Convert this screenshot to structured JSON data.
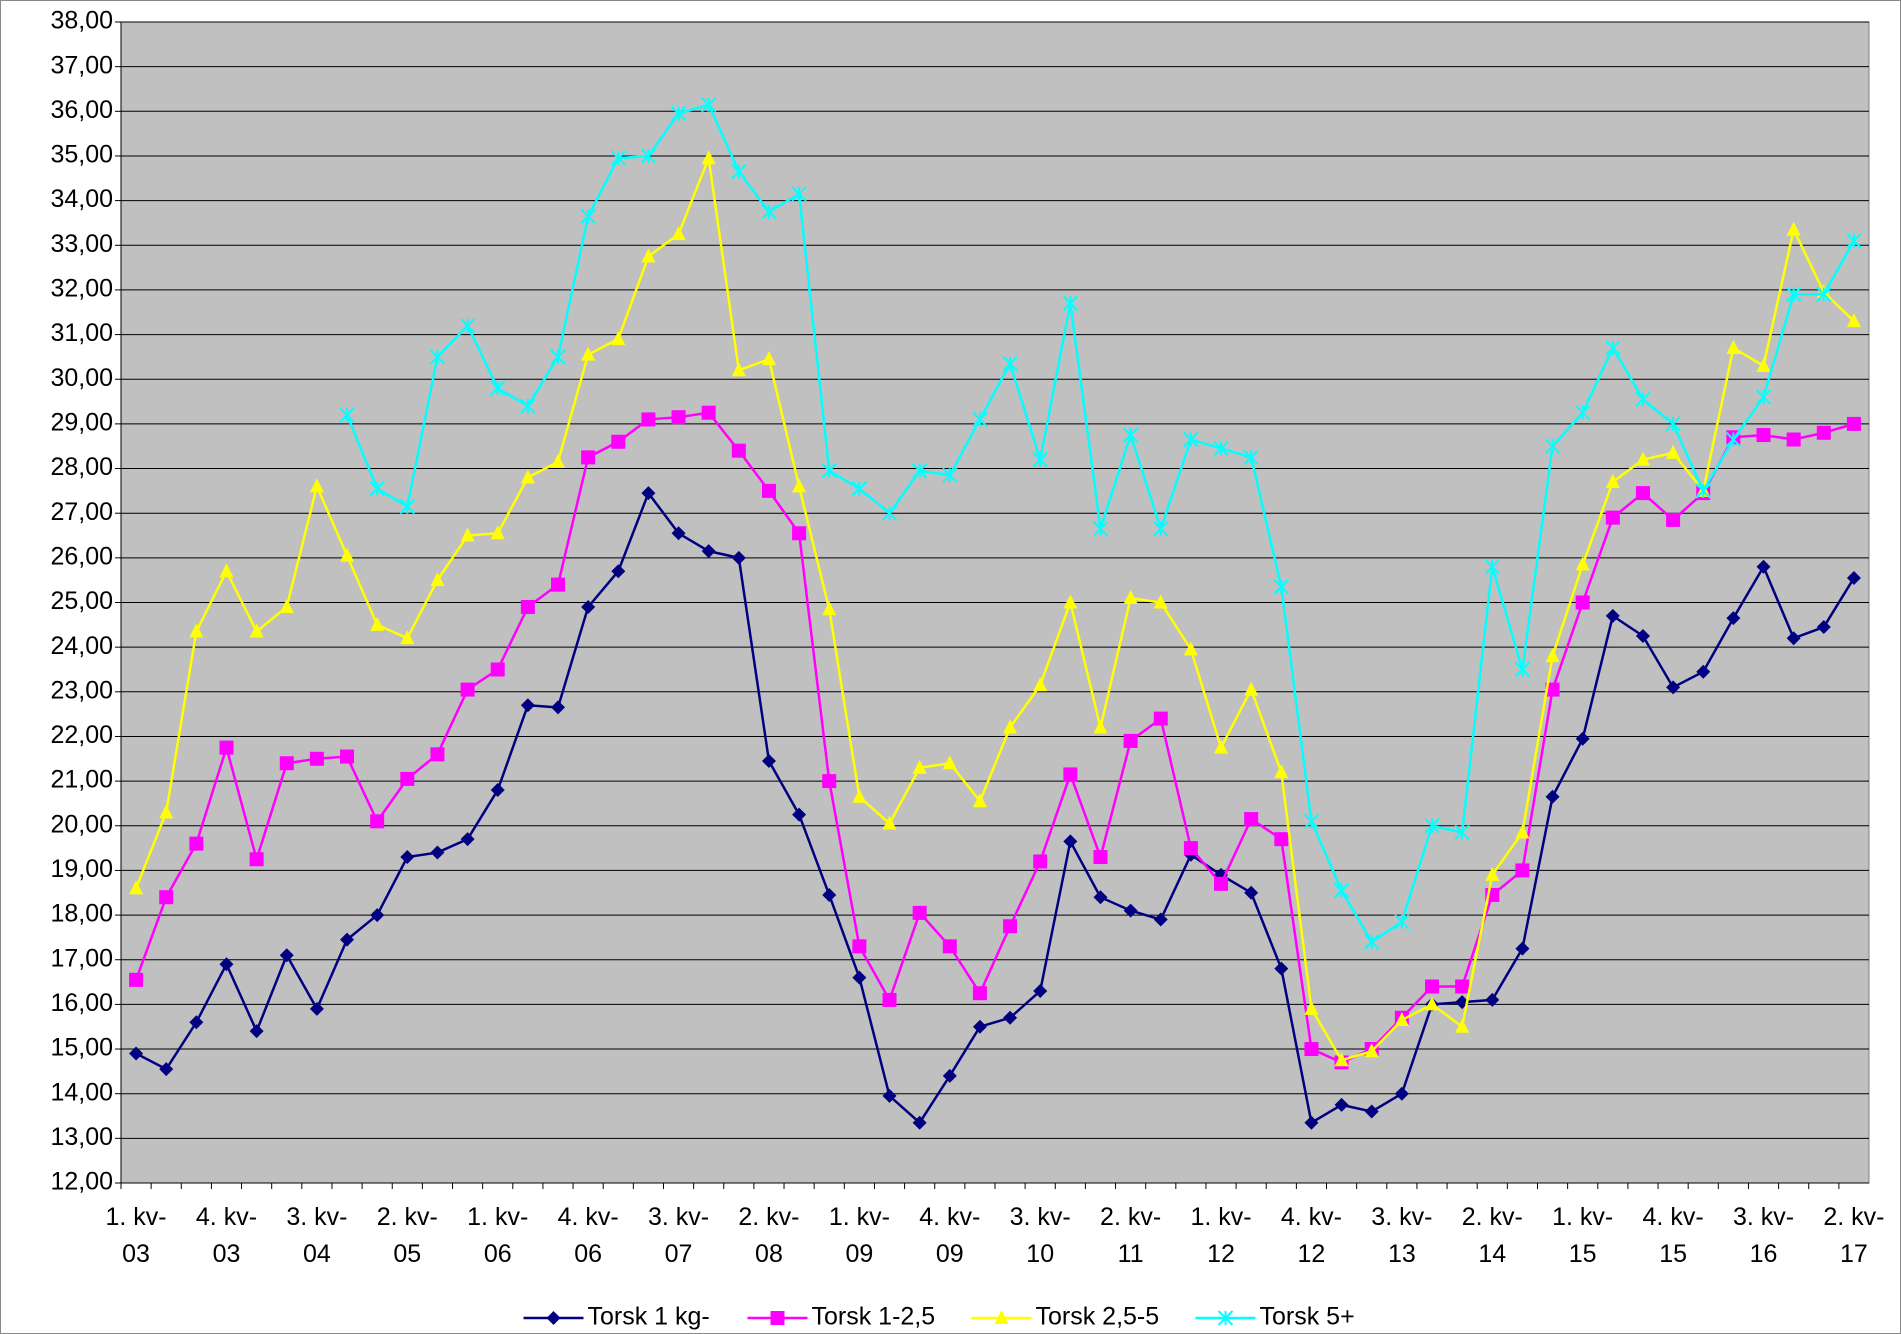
{
  "chart_data": {
    "type": "line",
    "categories": [
      "1. kv-03",
      null,
      null,
      "4. kv-03",
      null,
      null,
      "3. kv-04",
      null,
      null,
      "2. kv-05",
      null,
      null,
      "1. kv-06",
      null,
      null,
      "4. kv-06",
      null,
      null,
      "3. kv-07",
      null,
      null,
      "2. kv-08",
      null,
      null,
      "1. kv-09",
      null,
      null,
      "4. kv-09",
      null,
      null,
      "3. kv-10",
      null,
      null,
      "2. kv-11",
      null,
      null,
      "1. kv-12",
      null,
      null,
      "4. kv-12",
      null,
      null,
      "3. kv-13",
      null,
      null,
      "2. kv-14",
      null,
      null,
      "1. kv-15",
      null,
      null,
      "4. kv-15",
      null,
      null,
      "3. kv-16",
      null,
      null,
      "2. kv-17"
    ],
    "series": [
      {
        "name": "Torsk 1 kg-",
        "color": "#000080",
        "marker": "diamond",
        "values": [
          14.9,
          14.55,
          15.6,
          16.9,
          15.4,
          17.1,
          15.9,
          17.45,
          18.0,
          19.3,
          19.4,
          19.7,
          20.8,
          22.7,
          22.65,
          24.9,
          25.7,
          27.45,
          26.55,
          26.15,
          26.0,
          21.45,
          20.25,
          18.45,
          16.6,
          13.95,
          13.35,
          14.4,
          15.5,
          15.7,
          16.3,
          19.65,
          18.4,
          18.1,
          17.9,
          19.35,
          18.9,
          18.5,
          16.8,
          13.35,
          13.75,
          13.6,
          14.0,
          16.0,
          16.05,
          16.1,
          17.25,
          20.65,
          21.95,
          24.7,
          24.25,
          23.1,
          23.45,
          24.65,
          25.8,
          24.2,
          24.45,
          25.55
        ]
      },
      {
        "name": "Torsk 1-2,5",
        "color": "#ff00ff",
        "marker": "square",
        "values": [
          16.55,
          18.4,
          19.6,
          21.75,
          19.25,
          21.4,
          21.5,
          21.55,
          20.1,
          21.05,
          21.6,
          23.05,
          23.5,
          24.9,
          25.4,
          28.25,
          28.6,
          29.1,
          29.15,
          29.25,
          28.4,
          27.5,
          26.55,
          21.0,
          17.3,
          16.1,
          18.05,
          17.3,
          16.25,
          17.75,
          19.2,
          21.15,
          19.3,
          21.9,
          22.4,
          19.5,
          18.7,
          20.15,
          19.7,
          15.0,
          14.7,
          15.0,
          15.7,
          16.4,
          16.4,
          18.45,
          19.0,
          23.05,
          25.0,
          26.9,
          27.45,
          26.85,
          27.45,
          28.7,
          28.75,
          28.65,
          28.8,
          29.0
        ]
      },
      {
        "name": "Torsk 2,5-5",
        "color": "#ffff00",
        "marker": "triangle",
        "values": [
          18.6,
          20.3,
          24.35,
          25.7,
          24.35,
          24.9,
          27.6,
          26.05,
          24.5,
          24.2,
          25.5,
          26.5,
          26.55,
          27.8,
          28.15,
          30.55,
          30.9,
          32.75,
          33.25,
          34.95,
          30.2,
          30.45,
          27.6,
          24.85,
          20.65,
          20.05,
          21.3,
          21.4,
          20.55,
          22.2,
          23.15,
          25.0,
          22.2,
          25.1,
          25.0,
          23.95,
          21.75,
          23.05,
          21.2,
          15.9,
          14.75,
          14.95,
          15.65,
          16.0,
          15.5,
          18.9,
          19.85,
          23.8,
          25.85,
          27.7,
          28.2,
          28.35,
          27.5,
          30.7,
          30.3,
          33.35,
          31.95,
          31.3
        ]
      },
      {
        "name": "Torsk 5+",
        "color": "#00ffff",
        "marker": "star",
        "values": [
          null,
          null,
          null,
          null,
          null,
          null,
          null,
          29.2,
          27.55,
          27.15,
          30.5,
          31.2,
          29.8,
          29.4,
          30.5,
          33.65,
          34.95,
          35.0,
          35.95,
          36.15,
          34.65,
          33.75,
          34.15,
          27.95,
          27.55,
          27.0,
          27.95,
          27.85,
          29.1,
          30.35,
          28.2,
          31.7,
          26.65,
          28.75,
          26.65,
          28.65,
          28.45,
          28.25,
          25.35,
          20.1,
          18.55,
          17.4,
          17.85,
          20.0,
          19.85,
          25.8,
          23.5,
          28.5,
          29.25,
          30.7,
          29.55,
          29.0,
          27.5,
          28.65,
          29.6,
          31.9,
          31.9,
          33.1
        ]
      }
    ],
    "ylim": [
      12,
      38
    ],
    "yticks": [
      {
        "value": 12,
        "label": "12,00"
      },
      {
        "value": 13,
        "label": "13,00"
      },
      {
        "value": 14,
        "label": "14,00"
      },
      {
        "value": 15,
        "label": "15,00"
      },
      {
        "value": 16,
        "label": "16,00"
      },
      {
        "value": 17,
        "label": "17,00"
      },
      {
        "value": 18,
        "label": "18,00"
      },
      {
        "value": 19,
        "label": "19,00"
      },
      {
        "value": 20,
        "label": "20,00"
      },
      {
        "value": 21,
        "label": "21,00"
      },
      {
        "value": 22,
        "label": "22,00"
      },
      {
        "value": 23,
        "label": "23,00"
      },
      {
        "value": 24,
        "label": "24,00"
      },
      {
        "value": 25,
        "label": "25,00"
      },
      {
        "value": 26,
        "label": "26,00"
      },
      {
        "value": 27,
        "label": "27,00"
      },
      {
        "value": 28,
        "label": "28,00"
      },
      {
        "value": 29,
        "label": "29,00"
      },
      {
        "value": 30,
        "label": "30,00"
      },
      {
        "value": 31,
        "label": "31,00"
      },
      {
        "value": 32,
        "label": "32,00"
      },
      {
        "value": 33,
        "label": "33,00"
      },
      {
        "value": 34,
        "label": "34,00"
      },
      {
        "value": 35,
        "label": "35,00"
      },
      {
        "value": 36,
        "label": "36,00"
      },
      {
        "value": 37,
        "label": "37,00"
      },
      {
        "value": 38,
        "label": "38,00"
      }
    ],
    "grid": true,
    "legend": "bottom",
    "plot_background": "#c0c0c0"
  }
}
